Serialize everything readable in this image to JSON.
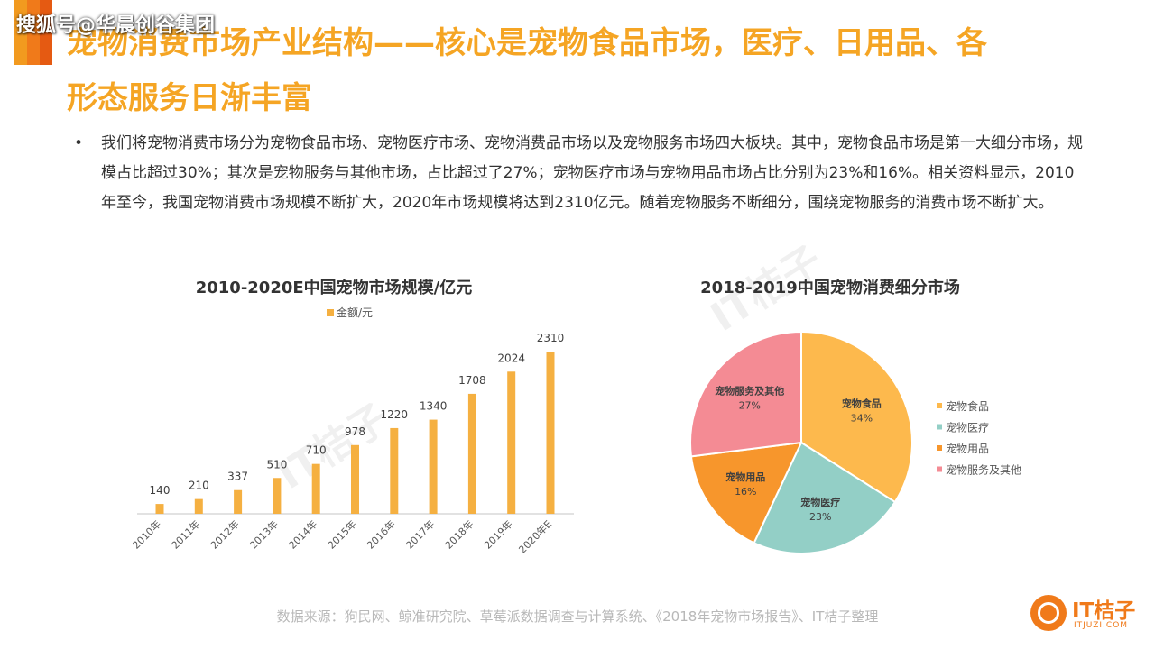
{
  "header": {
    "watermark": "搜狐号@华晨创谷集团",
    "title_line1": "宠物消费市场产业结构——核心是宠物食品市场，医疗、日用品、各",
    "title_line2": "形态服务日渐丰富"
  },
  "intro": {
    "bullet": "•",
    "text": "我们将宠物消费市场分为宠物食品市场、宠物医疗市场、宠物消费品市场以及宠物服务市场四大板块。其中，宠物食品市场是第一大细分市场，规模占比超过30%；其次是宠物服务与其他市场，占比超过了27%；宠物医疗市场与宠物用品市场占比分别为23%和16%。相关资料显示，2010年至今，我国宠物消费市场规模不断扩大，2020年市场规模将达到2310亿元。随着宠物服务不断细分，围绕宠物服务的消费市场不断扩大。"
  },
  "source": "数据来源：狗民网、鲸准研究院、草莓派数据调查与计算系统、《2018年宠物市场报告》、IT桔子整理",
  "logo": {
    "name": "IT桔子",
    "url": "ITJUZI.COM"
  },
  "background_watermark": "IT桔子",
  "colors": {
    "title": "#f5a524",
    "bar": "#f5b041",
    "food": "#fdb94d",
    "medical": "#93cfc6",
    "supplies": "#f7962c",
    "services": "#f48b94"
  },
  "chart_data": [
    {
      "type": "bar",
      "title": "2010-2020E中国宠物市场规模/亿元",
      "legend_position": "top-center",
      "grid": false,
      "categories": [
        "2010年",
        "2011年",
        "2012年",
        "2013年",
        "2014年",
        "2015年",
        "2016年",
        "2017年",
        "2018年",
        "2019年",
        "2020年E"
      ],
      "series": [
        {
          "name": "金额/元",
          "values": [
            140,
            210,
            337,
            510,
            710,
            978,
            1220,
            1340,
            1708,
            2024,
            2310
          ]
        }
      ],
      "ylim": [
        0,
        2310
      ]
    },
    {
      "type": "pie",
      "title": "2018-2019中国宠物消费细分市场",
      "legend_position": "right",
      "slices": [
        {
          "label": "宠物食品",
          "value": 34,
          "display": "34%"
        },
        {
          "label": "宠物医疗",
          "value": 23,
          "display": "23%"
        },
        {
          "label": "宠物用品",
          "value": 16,
          "display": "16%"
        },
        {
          "label": "宠物服务及其他",
          "value": 27,
          "display": "27%"
        }
      ]
    }
  ]
}
